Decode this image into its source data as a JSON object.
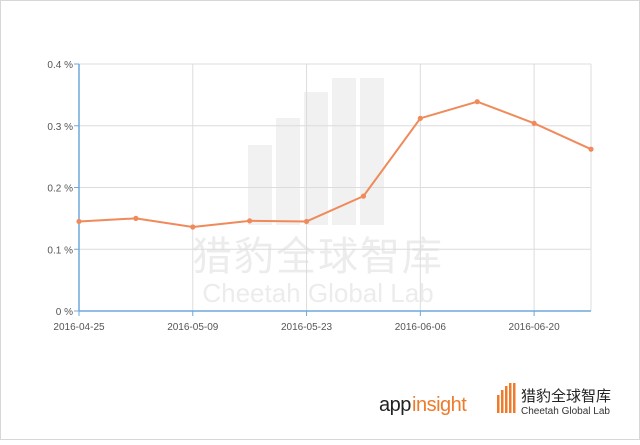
{
  "chart_data": {
    "type": "line",
    "x": [
      "2016-04-25",
      "2016-05-02",
      "2016-05-09",
      "2016-05-16",
      "2016-05-23",
      "2016-05-30",
      "2016-06-06",
      "2016-06-13",
      "2016-06-20",
      "2016-06-27"
    ],
    "series": [
      {
        "values": [
          0.145,
          0.15,
          0.136,
          0.146,
          0.145,
          0.186,
          0.312,
          0.339,
          0.304,
          0.262
        ],
        "color": "#f08a5a"
      }
    ],
    "xticks": [
      "2016-04-25",
      "2016-05-09",
      "2016-05-23",
      "2016-06-06",
      "2016-06-20"
    ],
    "yticks": [
      "0 %",
      "0.1 %",
      "0.2 %",
      "0.3 %",
      "0.4 %"
    ],
    "ylim": [
      0,
      0.4
    ],
    "grid": true,
    "axis_color": "#6fa8dc"
  },
  "watermark": {
    "cn": "猎豹全球智库",
    "en": "Cheetah Global Lab"
  },
  "brand": {
    "app": "app",
    "insight": "insight",
    "cn": "猎豹全球智库",
    "en": "Cheetah Global Lab",
    "accent": "#ee7b2c"
  }
}
